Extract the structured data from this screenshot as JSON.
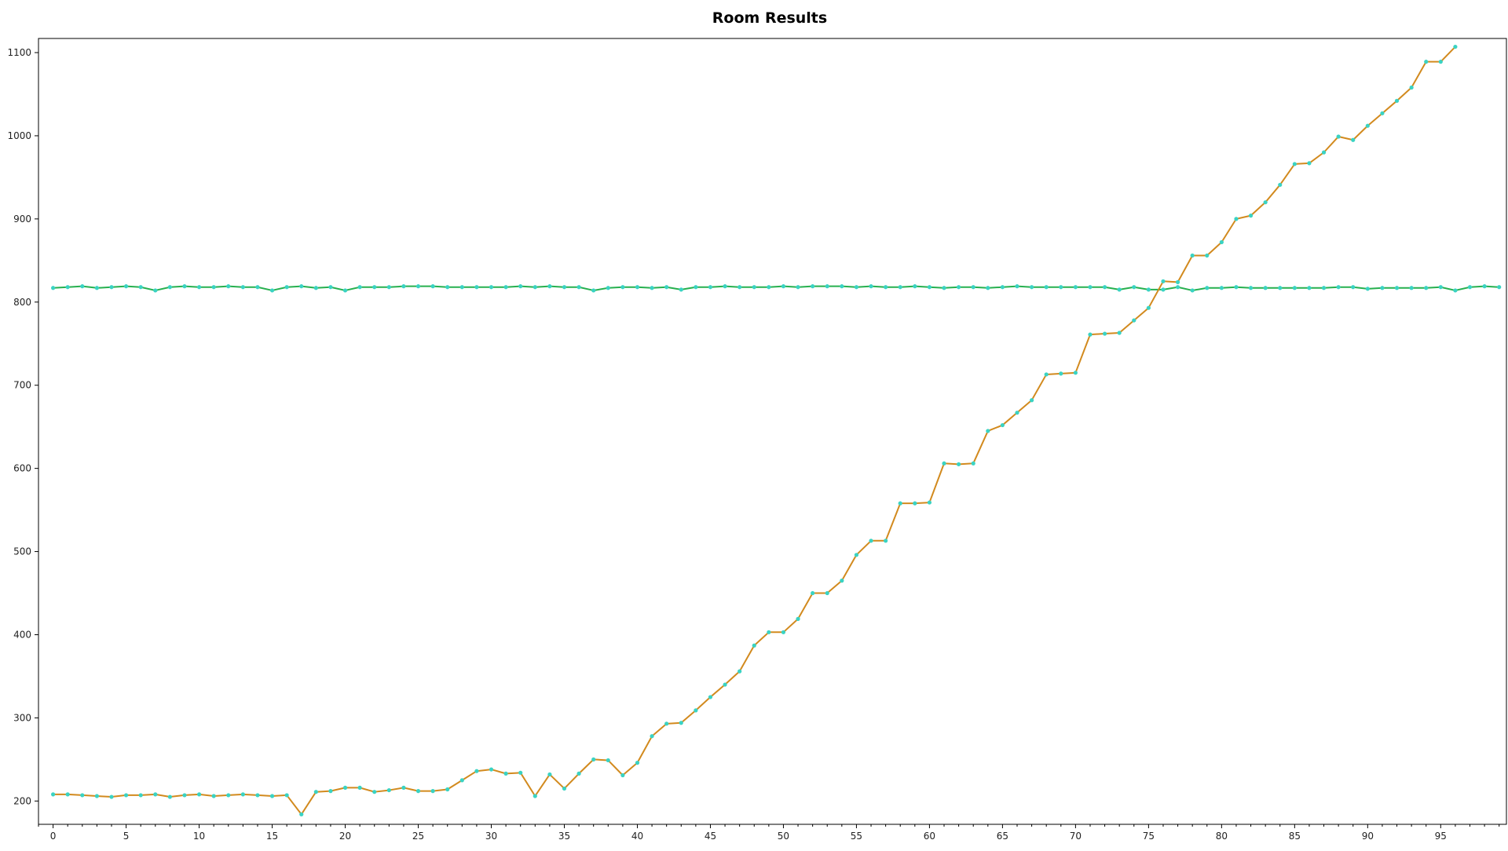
{
  "chart_data": {
    "type": "line",
    "title": "Room Results",
    "xlabel": "",
    "ylabel": "",
    "xlim": [
      -1,
      99.5
    ],
    "ylim": [
      172,
      1117
    ],
    "x_ticks": [
      0,
      5,
      10,
      15,
      20,
      25,
      30,
      35,
      40,
      45,
      50,
      55,
      60,
      65,
      70,
      75,
      80,
      85,
      90,
      95
    ],
    "y_ticks": [
      200,
      300,
      400,
      500,
      600,
      700,
      800,
      900,
      1000,
      1100
    ],
    "grid": false,
    "legend": "none",
    "series": [
      {
        "line_color": "#27b04f",
        "marker_color": "#3ad3c3",
        "x_start": 0,
        "values": [
          817,
          818,
          819,
          817,
          818,
          819,
          818,
          814,
          818,
          819,
          818,
          818,
          819,
          818,
          818,
          814,
          818,
          819,
          817,
          818,
          814,
          818,
          818,
          818,
          819,
          819,
          819,
          818,
          818,
          818,
          818,
          818,
          819,
          818,
          819,
          818,
          818,
          814,
          817,
          818,
          818,
          817,
          818,
          815,
          818,
          818,
          819,
          818,
          818,
          818,
          819,
          818,
          819,
          819,
          819,
          818,
          819,
          818,
          818,
          819,
          818,
          817,
          818,
          818,
          817,
          818,
          819,
          818,
          818,
          818,
          818,
          818,
          818,
          815,
          818,
          815,
          815,
          818,
          814,
          817,
          817,
          818,
          817,
          817,
          817,
          817,
          817,
          817,
          818,
          818,
          816,
          817,
          817,
          817,
          817,
          818,
          814,
          818,
          819,
          818
        ]
      },
      {
        "line_color": "#d28a1e",
        "marker_color": "#3ad3c3",
        "x_start": 0,
        "values": [
          208,
          208,
          207,
          206,
          205,
          207,
          207,
          208,
          205,
          207,
          208,
          206,
          207,
          208,
          207,
          206,
          207,
          184,
          211,
          212,
          216,
          216,
          211,
          213,
          216,
          212,
          212,
          214,
          225,
          236,
          238,
          233,
          234,
          206,
          232,
          215,
          233,
          250,
          249,
          231,
          246,
          278,
          293,
          294,
          309,
          325,
          340,
          356,
          387,
          403,
          403,
          419,
          450,
          450,
          465,
          496,
          513,
          513,
          558,
          558,
          559,
          606,
          605,
          606,
          645,
          652,
          667,
          682,
          713,
          714,
          715,
          761,
          762,
          763,
          778,
          793,
          825,
          824,
          856,
          856,
          872,
          900,
          904,
          920,
          941,
          966,
          967,
          980,
          999,
          995,
          1012,
          1027,
          1042,
          1058,
          1089,
          1089,
          1107
        ]
      }
    ]
  }
}
